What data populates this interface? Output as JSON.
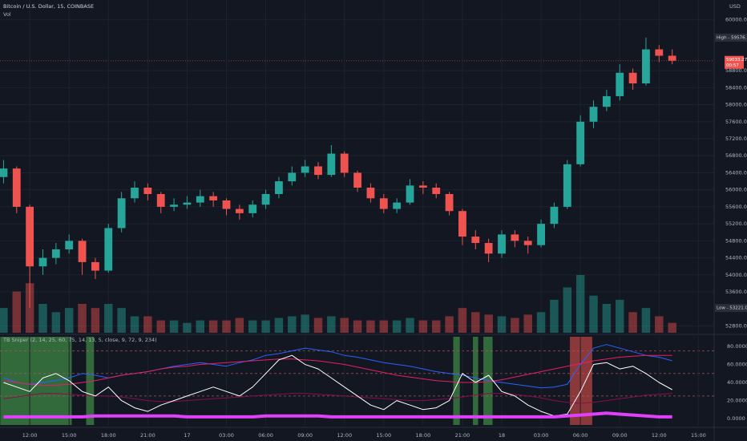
{
  "chart_data": [
    {
      "type": "candlestick",
      "title": "Bitcoin / U.S. Dollar, 15, COINBASE",
      "volume_label": "Vol",
      "currency": "USD",
      "high_label": "High - 59576.18",
      "low_label": "Low - 53221.00",
      "countdown": "00:57",
      "up_color": "#26a69a",
      "down_color": "#ef5350",
      "x": [
        10,
        11,
        12,
        13,
        14,
        15,
        16,
        17,
        18,
        19,
        20,
        21,
        22,
        23,
        24,
        25,
        26,
        27,
        28,
        29,
        30,
        31,
        32,
        33,
        34,
        35,
        36,
        37,
        38,
        39,
        40,
        41,
        42,
        43,
        44,
        45,
        46,
        47,
        48,
        49,
        50,
        51,
        52,
        53,
        54,
        55,
        56,
        57,
        58,
        59,
        60,
        61
      ],
      "open": [
        56300,
        56500,
        55600,
        54200,
        54400,
        54600,
        54800,
        54300,
        54100,
        55100,
        55800,
        56050,
        55900,
        55600,
        55650,
        55700,
        55850,
        55750,
        55550,
        55450,
        55650,
        55900,
        56200,
        56400,
        56550,
        56350,
        56850,
        56400,
        56050,
        55800,
        55550,
        55700,
        56100,
        56050,
        55900,
        55500,
        54900,
        54750,
        54500,
        54950,
        54800,
        54700,
        55200,
        55600,
        56600,
        57600,
        57950,
        58200,
        58750,
        58500,
        59300,
        59150
      ],
      "high": [
        56700,
        56550,
        55650,
        54600,
        54750,
        54950,
        54850,
        54400,
        55200,
        55950,
        56200,
        56150,
        55950,
        55800,
        55850,
        56000,
        55950,
        55800,
        55650,
        55750,
        56000,
        56300,
        56550,
        56700,
        56650,
        57050,
        56900,
        56450,
        56150,
        55900,
        55800,
        56250,
        56200,
        56150,
        55950,
        55550,
        55050,
        54850,
        55050,
        55050,
        54900,
        55300,
        55700,
        56700,
        57750,
        58100,
        58350,
        58950,
        58850,
        59576.18,
        59400,
        59300
      ],
      "low": [
        56150,
        55450,
        53221,
        54000,
        54250,
        54500,
        54000,
        53900,
        54050,
        55000,
        55700,
        55750,
        55450,
        55500,
        55550,
        55600,
        55600,
        55400,
        55300,
        55350,
        55550,
        55800,
        56100,
        56300,
        56250,
        56300,
        56300,
        55950,
        55700,
        55450,
        55450,
        55650,
        55900,
        55800,
        55400,
        54700,
        54600,
        54300,
        54400,
        54650,
        54500,
        54650,
        55100,
        55550,
        56550,
        57450,
        57850,
        58100,
        58350,
        58450,
        59000,
        58950
      ],
      "close": [
        56500,
        55600,
        54200,
        54400,
        54600,
        54800,
        54300,
        54100,
        55100,
        55800,
        56050,
        55900,
        55600,
        55650,
        55700,
        55850,
        55750,
        55550,
        55450,
        55650,
        55900,
        56200,
        56400,
        56550,
        56350,
        56850,
        56400,
        56050,
        55800,
        55550,
        55700,
        56100,
        56050,
        55900,
        55500,
        54900,
        54750,
        54500,
        54950,
        54800,
        54700,
        55200,
        55600,
        56600,
        57600,
        57950,
        58200,
        58750,
        58500,
        59300,
        59150,
        59033.27
      ],
      "volume": [
        30,
        50,
        60,
        35,
        25,
        30,
        35,
        30,
        35,
        30,
        20,
        20,
        15,
        15,
        12,
        15,
        15,
        15,
        18,
        15,
        15,
        18,
        20,
        22,
        18,
        20,
        18,
        15,
        15,
        15,
        15,
        18,
        15,
        15,
        20,
        30,
        25,
        22,
        20,
        18,
        22,
        25,
        40,
        55,
        70,
        45,
        35,
        40,
        25,
        30,
        20,
        12
      ],
      "xlim": [
        9.73,
        64.2
      ],
      "ylim": [
        52640,
        60460
      ],
      "yticks": [
        {
          "value": 52800,
          "label": "52800.00"
        },
        {
          "value": 53600,
          "label": "53600.00"
        },
        {
          "value": 54000,
          "label": "54000.00"
        },
        {
          "value": 54400,
          "label": "54400.00"
        },
        {
          "value": 54800,
          "label": "54800.00"
        },
        {
          "value": 55200,
          "label": "55200.00"
        },
        {
          "value": 55600,
          "label": "55600.00"
        },
        {
          "value": 56000,
          "label": "56000.00"
        },
        {
          "value": 56400,
          "label": "56400.00"
        },
        {
          "value": 56800,
          "label": "56800.00"
        },
        {
          "value": 57200,
          "label": "57200.00"
        },
        {
          "value": 57600,
          "label": "57600.00"
        },
        {
          "value": 58000,
          "label": "58000.00"
        },
        {
          "value": 58400,
          "label": "58400.00"
        },
        {
          "value": 58800,
          "label": "58800.00"
        },
        {
          "value": 60000,
          "label": "60000.00"
        }
      ],
      "grid": true
    },
    {
      "type": "line",
      "title": "TB Sniper (2, 14, 25, 60, 75, 14, 13, 5, close, 9, 72, 9, 234)",
      "x": [
        10,
        11,
        12,
        13,
        14,
        15,
        16,
        17,
        18,
        19,
        20,
        21,
        22,
        23,
        24,
        25,
        26,
        27,
        28,
        29,
        30,
        31,
        32,
        33,
        34,
        35,
        36,
        37,
        38,
        39,
        40,
        41,
        42,
        43,
        44,
        45,
        46,
        47,
        48,
        49,
        50,
        51,
        52,
        53,
        54,
        55,
        56,
        57,
        58,
        59,
        60,
        61
      ],
      "series": [
        {
          "color": "#2962ff",
          "width": 1,
          "values": [
            45,
            40,
            38,
            40,
            42,
            45,
            50,
            48,
            45,
            48,
            50,
            52,
            55,
            58,
            60,
            62,
            60,
            58,
            62,
            65,
            70,
            72,
            75,
            78,
            76,
            74,
            70,
            68,
            65,
            62,
            60,
            58,
            55,
            52,
            50,
            48,
            45,
            42,
            40,
            38,
            36,
            34,
            35,
            38,
            60,
            78,
            82,
            78,
            74,
            70,
            68,
            64
          ]
        },
        {
          "color": "#e91e63",
          "width": 1,
          "values": [
            42,
            40,
            38,
            37,
            37,
            38,
            40,
            42,
            45,
            48,
            50,
            52,
            55,
            57,
            58,
            60,
            61,
            62,
            63,
            64,
            65,
            66,
            66,
            65,
            64,
            62,
            60,
            57,
            54,
            51,
            48,
            46,
            44,
            42,
            41,
            40,
            40,
            41,
            43,
            46,
            49,
            52,
            55,
            58,
            61,
            64,
            66,
            68,
            69,
            70,
            70,
            70
          ]
        },
        {
          "color": "#880e4f",
          "width": 1,
          "values": [
            22,
            24,
            26,
            28,
            28,
            27,
            26,
            25,
            25,
            24,
            22,
            20,
            19,
            19,
            20,
            21,
            22,
            23,
            24,
            25,
            26,
            27,
            28,
            28,
            27,
            26,
            25,
            24,
            23,
            22,
            21,
            20,
            20,
            21,
            22,
            24,
            26,
            28,
            28,
            27,
            25,
            23,
            20,
            18,
            17,
            18,
            20,
            22,
            24,
            26,
            27,
            28
          ]
        },
        {
          "color": "#ffffff",
          "width": 1,
          "values": [
            40,
            35,
            30,
            45,
            50,
            42,
            30,
            25,
            35,
            20,
            12,
            8,
            15,
            20,
            25,
            30,
            35,
            30,
            25,
            35,
            50,
            65,
            70,
            60,
            55,
            45,
            35,
            25,
            15,
            10,
            20,
            15,
            10,
            12,
            20,
            50,
            40,
            48,
            30,
            25,
            15,
            8,
            3,
            5,
            30,
            60,
            62,
            55,
            58,
            50,
            40,
            32
          ]
        },
        {
          "color": "#e040fb",
          "width": 4,
          "values": [
            2,
            2,
            2,
            2,
            2,
            2,
            2,
            3,
            3,
            3,
            3,
            3,
            3,
            3,
            2,
            2,
            2,
            2,
            2,
            2,
            3,
            3,
            3,
            3,
            3,
            2,
            2,
            2,
            2,
            2,
            2,
            2,
            2,
            2,
            2,
            2,
            2,
            2,
            2,
            2,
            2,
            2,
            2,
            3,
            4,
            5,
            6,
            5,
            4,
            3,
            2,
            2
          ]
        }
      ],
      "highlights": [
        {
          "from": 9.75,
          "to": 15.2,
          "color": "#4caf50"
        },
        {
          "from": 16.3,
          "to": 16.9,
          "color": "#4caf50"
        },
        {
          "from": 44.3,
          "to": 44.8,
          "color": "#4caf50"
        },
        {
          "from": 45.8,
          "to": 46.2,
          "color": "#4caf50"
        },
        {
          "from": 46.6,
          "to": 47.3,
          "color": "#4caf50"
        },
        {
          "from": 53.2,
          "to": 54.9,
          "color": "#ef5350"
        }
      ],
      "hlines": [
        75,
        50,
        25
      ],
      "xlim": [
        9.73,
        64.2
      ],
      "ylim": [
        -7,
        90.6
      ],
      "yticks": [
        {
          "value": 0,
          "label": "0.0000"
        },
        {
          "value": 20,
          "label": "20.0000"
        },
        {
          "value": 40,
          "label": "40.0000"
        },
        {
          "value": 60,
          "label": "60.0000"
        },
        {
          "value": 80,
          "label": "80.0000"
        }
      ],
      "xticks": [
        {
          "value": 12,
          "label": "12:00"
        },
        {
          "value": 15,
          "label": "15:00"
        },
        {
          "value": 18,
          "label": "18:00"
        },
        {
          "value": 21,
          "label": "21:00"
        },
        {
          "value": 24,
          "label": "17"
        },
        {
          "value": 27,
          "label": "03:00"
        },
        {
          "value": 30,
          "label": "06:00"
        },
        {
          "value": 33,
          "label": "09:00"
        },
        {
          "value": 36,
          "label": "12:00"
        },
        {
          "value": 39,
          "label": "15:00"
        },
        {
          "value": 42,
          "label": "18:00"
        },
        {
          "value": 45,
          "label": "21:00"
        },
        {
          "value": 48,
          "label": "18"
        },
        {
          "value": 51,
          "label": "03:00"
        },
        {
          "value": 54,
          "label": "06:00"
        },
        {
          "value": 57,
          "label": "09:00"
        },
        {
          "value": 60,
          "label": "12:00"
        },
        {
          "value": 63,
          "label": "15:00"
        }
      ],
      "grid": true
    }
  ]
}
